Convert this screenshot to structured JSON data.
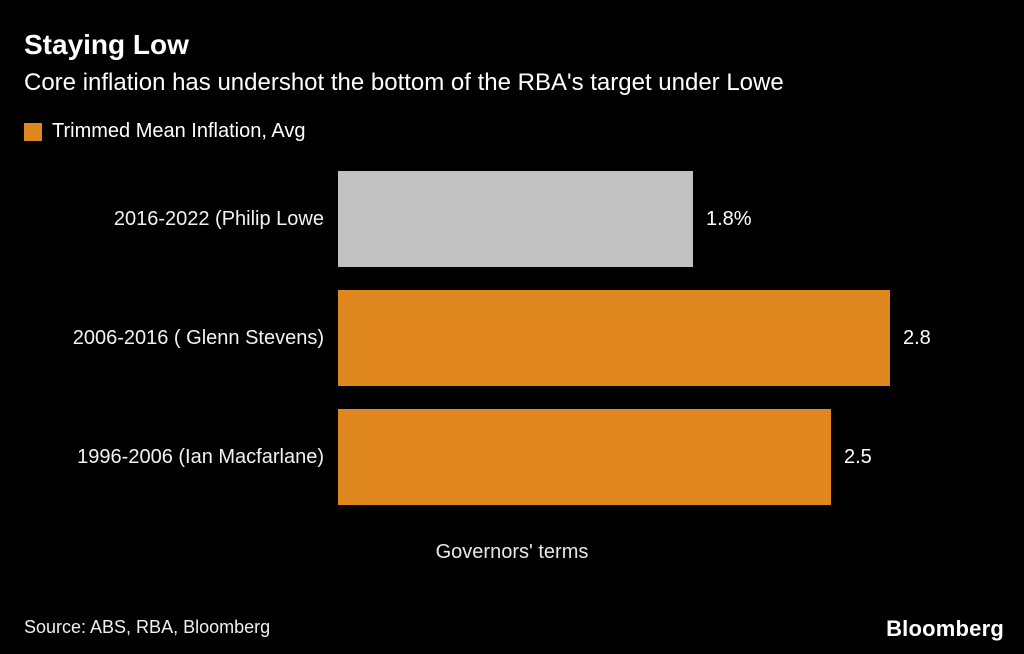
{
  "header": {
    "title": "Staying Low",
    "subtitle": "Core inflation has undershot the bottom of the RBA's target under Lowe"
  },
  "legend": {
    "label": "Trimmed Mean Inflation, Avg",
    "swatch_color": "#e0861f"
  },
  "chart_data": {
    "type": "bar",
    "orientation": "horizontal",
    "title": "Staying Low",
    "subtitle": "Core inflation has undershot the bottom of the RBA's target under Lowe",
    "legend_entries": [
      "Trimmed Mean Inflation, Avg"
    ],
    "categories": [
      "2016-2022 (Philip Lowe",
      "2006-2016 ( Glenn Stevens)",
      "1996-2006 (Ian Macfarlane)"
    ],
    "values": [
      1.8,
      2.8,
      2.5
    ],
    "value_labels": [
      "1.8%",
      "2.8",
      "2.5"
    ],
    "bar_colors": [
      "#c1c1c1",
      "#e0861f",
      "#e0861f"
    ],
    "xlabel": "Governors' terms",
    "xlim": [
      0,
      2.8
    ],
    "grid": false,
    "legend_position": "top-left"
  },
  "footer": {
    "source": "Source: ABS, RBA, Bloomberg",
    "brand": "Bloomberg"
  }
}
